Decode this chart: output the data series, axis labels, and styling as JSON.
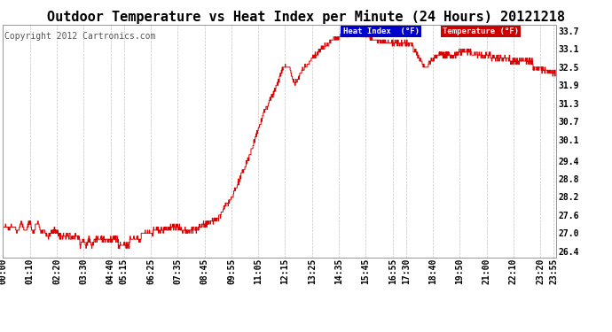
{
  "title": "Outdoor Temperature vs Heat Index per Minute (24 Hours) 20121218",
  "copyright": "Copyright 2012 Cartronics.com",
  "ylabel_right_ticks": [
    26.4,
    27.0,
    27.6,
    28.2,
    28.8,
    29.4,
    30.1,
    30.7,
    31.3,
    31.9,
    32.5,
    33.1,
    33.7
  ],
  "ylim": [
    26.2,
    33.9
  ],
  "bg_color": "#ffffff",
  "grid_color": "#bbbbbb",
  "line_color": "#dd0000",
  "legend_heat_bg": "#0000cc",
  "legend_temp_bg": "#cc0000",
  "x_tick_labels": [
    "00:00",
    "01:10",
    "02:20",
    "03:30",
    "04:40",
    "05:15",
    "06:25",
    "07:35",
    "08:45",
    "09:55",
    "11:05",
    "12:15",
    "13:25",
    "14:35",
    "15:45",
    "16:55",
    "17:30",
    "18:40",
    "19:50",
    "21:00",
    "22:10",
    "23:20",
    "23:55"
  ],
  "xtick_positions": [
    0,
    70,
    140,
    210,
    280,
    315,
    385,
    455,
    525,
    595,
    665,
    735,
    805,
    875,
    945,
    1015,
    1050,
    1120,
    1190,
    1260,
    1330,
    1400,
    1435
  ],
  "total_minutes": 1440,
  "title_fontsize": 11,
  "copyright_fontsize": 7,
  "tick_fontsize": 7
}
